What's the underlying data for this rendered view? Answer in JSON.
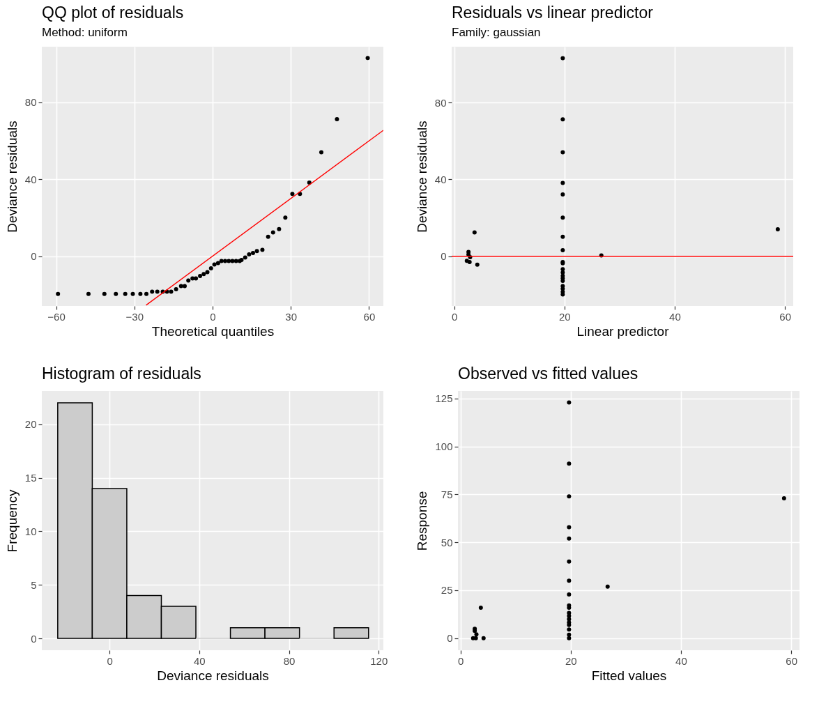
{
  "chart_data": [
    {
      "type": "scatter",
      "title": "QQ plot of residuals",
      "subtitle": "Method: uniform",
      "xlabel": "Theoretical quantiles",
      "ylabel": "Deviance residuals",
      "xlim": [
        -65.5,
        65.5
      ],
      "ylim": [
        -25.9,
        109
      ],
      "xticks": [
        -60,
        -30,
        0,
        30,
        60
      ],
      "yticks": [
        0,
        40,
        80
      ],
      "grid": true,
      "series": [
        {
          "type": "scatter",
          "marker": "circle",
          "color": "#000000",
          "x": [
            -59.3,
            -47.6,
            -41.5,
            -37.1,
            -33.5,
            -30.6,
            -27.7,
            -25.4,
            -23.2,
            -21.2,
            -19.1,
            -17.5,
            -15.9,
            -14.0,
            -12.1,
            -10.7,
            -9.3,
            -7.7,
            -6.4,
            -4.8,
            -3.4,
            -2.0,
            -0.6,
            0.7,
            2.1,
            3.4,
            4.8,
            6.2,
            7.6,
            9.0,
            10.4,
            11.1,
            12.5,
            14.0,
            15.5,
            17.0,
            19.1,
            21.3,
            23.2,
            25.5,
            27.9,
            30.6,
            33.5,
            37.1,
            41.7,
            47.7,
            59.5
          ],
          "values": [
            -19.6,
            -19.6,
            -19.6,
            -19.6,
            -19.6,
            -19.6,
            -19.6,
            -19.6,
            -18.5,
            -18.5,
            -18.5,
            -18.5,
            -18.5,
            -17.2,
            -15.6,
            -15.6,
            -12.7,
            -11.6,
            -11.6,
            -10.3,
            -9.3,
            -8.3,
            -6.3,
            -4.3,
            -3.6,
            -2.5,
            -2.5,
            -2.5,
            -2.5,
            -2.5,
            -2.5,
            -2.0,
            -0.7,
            0.9,
            1.7,
            2.7,
            3.3,
            10.1,
            12.4,
            14.1,
            20.1,
            32.4,
            32.4,
            38.3,
            54.1,
            71.3,
            103.1
          ]
        },
        {
          "type": "line",
          "color": "#ff0000",
          "x": [
            -25.5,
            65.5
          ],
          "values": [
            -25.5,
            65.5
          ]
        }
      ]
    },
    {
      "type": "scatter",
      "title": "Residuals vs linear predictor",
      "subtitle": "Family: gaussian",
      "xlabel": "Linear predictor",
      "ylabel": "Deviance residuals",
      "xlim": [
        -0.45,
        61.5
      ],
      "ylim": [
        -25.8,
        109
      ],
      "xticks": [
        0,
        20,
        40,
        60
      ],
      "yticks": [
        0,
        40,
        80
      ],
      "grid": true,
      "marker": "circle",
      "ref_lines": [
        {
          "axis": "y",
          "value": 0,
          "color": "#ff0000"
        }
      ],
      "series": [
        {
          "type": "scatter",
          "color": "#000000",
          "x": [
            3.7,
            2.6,
            2.6,
            2.9,
            2.3,
            2.8,
            4.2,
            19.7,
            19.7,
            19.7,
            19.7,
            19.7,
            19.7,
            19.7,
            19.7,
            19.7,
            19.7,
            19.7,
            19.7,
            19.7,
            19.7,
            19.7,
            19.7,
            19.7,
            19.7,
            19.7,
            26.7,
            58.7
          ],
          "values": [
            12.4,
            2.3,
            0.9,
            -0.4,
            -2.3,
            -3.0,
            -4.3,
            103.0,
            71.2,
            54.1,
            38.2,
            32.2,
            20.1,
            10.2,
            3.2,
            -3.0,
            -3.6,
            -6.7,
            -8.4,
            -10.1,
            -11.4,
            -12.8,
            -15.5,
            -16.8,
            -18.5,
            -19.8,
            0.5,
            14.1
          ]
        }
      ]
    },
    {
      "type": "histogram",
      "title": "Histogram of residuals",
      "xlabel": "Deviance residuals",
      "ylabel": "Frequency",
      "xlim": [
        -30.2,
        122.1
      ],
      "ylim": [
        -1.1,
        23.1
      ],
      "xticks": [
        0,
        40,
        80,
        120
      ],
      "yticks": [
        0,
        5,
        10,
        15,
        20
      ],
      "grid": true,
      "color": "#cccccc",
      "bins": [
        -23.1,
        -7.7,
        7.7,
        23.1,
        38.5,
        53.9,
        69.3,
        84.7,
        100.1,
        115.5
      ],
      "values": [
        22,
        14,
        4,
        3,
        0,
        1,
        1,
        0,
        1
      ]
    },
    {
      "type": "scatter",
      "title": "Observed vs fitted values",
      "xlabel": "Fitted values",
      "ylabel": "Response",
      "xlim": [
        -0.45,
        61.5
      ],
      "ylim": [
        -6.3,
        129
      ],
      "xticks": [
        0,
        20,
        40,
        60
      ],
      "yticks": [
        0,
        25,
        50,
        75,
        100,
        125
      ],
      "grid": true,
      "marker": "circle",
      "series": [
        {
          "type": "scatter",
          "color": "#000000",
          "x": [
            3.7,
            2.6,
            2.6,
            2.9,
            2.3,
            2.8,
            4.2,
            19.7,
            19.7,
            19.7,
            19.7,
            19.7,
            19.7,
            19.7,
            19.7,
            19.7,
            19.7,
            19.7,
            19.7,
            19.7,
            19.7,
            19.7,
            19.7,
            19.7,
            19.7,
            26.7,
            58.7
          ],
          "values": [
            15.9,
            4.9,
            3.8,
            2.0,
            0,
            0,
            0,
            123.0,
            91.1,
            74.0,
            57.9,
            52.0,
            40.0,
            30.0,
            22.8,
            17.1,
            15.9,
            13.2,
            11.6,
            9.9,
            8.2,
            6.9,
            4.5,
            1.8,
            0,
            26.9,
            73.0
          ]
        }
      ]
    }
  ]
}
